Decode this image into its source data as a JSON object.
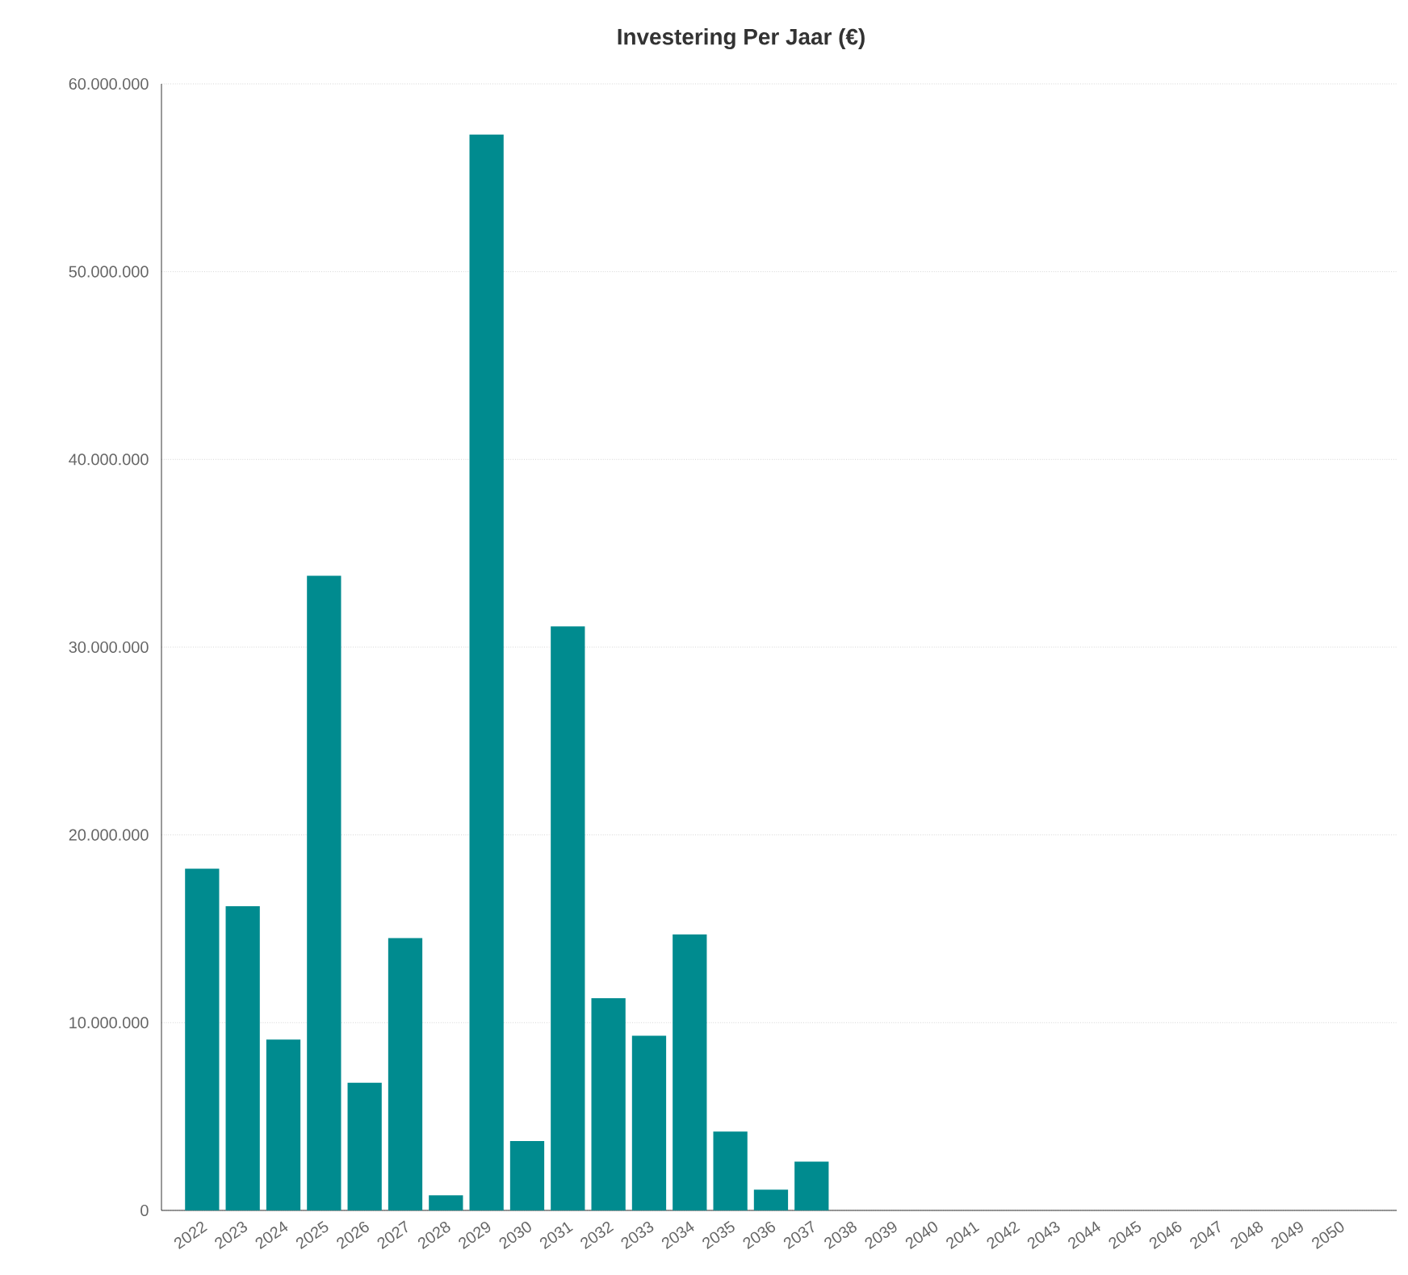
{
  "chart_data": {
    "type": "bar",
    "title": "Investering Per Jaar (€)",
    "categories": [
      "2022",
      "2023",
      "2024",
      "2025",
      "2026",
      "2027",
      "2028",
      "2029",
      "2030",
      "2031",
      "2032",
      "2033",
      "2034",
      "2035",
      "2036",
      "2037",
      "2038",
      "2039",
      "2040",
      "2041",
      "2042",
      "2043",
      "2044",
      "2045",
      "2046",
      "2047",
      "2048",
      "2049",
      "2050"
    ],
    "values": [
      18200000,
      16200000,
      9100000,
      33800000,
      6800000,
      14500000,
      800000,
      57300000,
      3700000,
      31100000,
      11300000,
      9300000,
      14700000,
      4200000,
      1100000,
      2600000,
      null,
      null,
      null,
      null,
      null,
      null,
      null,
      null,
      null,
      null,
      null,
      null,
      null
    ],
    "color": "#008b8f",
    "ylim": [
      0,
      60000000
    ],
    "yticks": [
      {
        "value": 0,
        "label": "0"
      },
      {
        "value": 10000000,
        "label": "10.000.000"
      },
      {
        "value": 20000000,
        "label": "20.000.000"
      },
      {
        "value": 30000000,
        "label": "30.000.000"
      },
      {
        "value": 40000000,
        "label": "40.000.000"
      },
      {
        "value": 50000000,
        "label": "50.000.000"
      },
      {
        "value": 60000000,
        "label": "60.000.000"
      }
    ],
    "grid": "y"
  }
}
